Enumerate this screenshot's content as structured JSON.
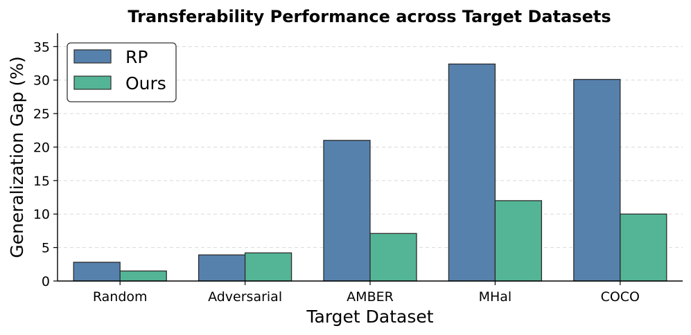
{
  "chart_data": {
    "type": "bar",
    "title": "Transferability Performance across Target Datasets",
    "xlabel": "Target Dataset",
    "ylabel": "Generalization Gap (%)",
    "categories": [
      "Random",
      "Adversarial",
      "AMBER",
      "MHal",
      "COCO"
    ],
    "series": [
      {
        "name": "RP",
        "color": "#5781ad",
        "values": [
          2.8,
          3.9,
          21.0,
          32.4,
          30.1
        ]
      },
      {
        "name": "Ours",
        "color": "#54b596",
        "values": [
          1.5,
          4.2,
          7.1,
          12.0,
          10.0
        ]
      }
    ],
    "ylim": [
      0,
      37
    ],
    "yticks": [
      0,
      5,
      10,
      15,
      20,
      25,
      30,
      35
    ],
    "grid": "y-dashed",
    "legend_position": "top-left"
  }
}
